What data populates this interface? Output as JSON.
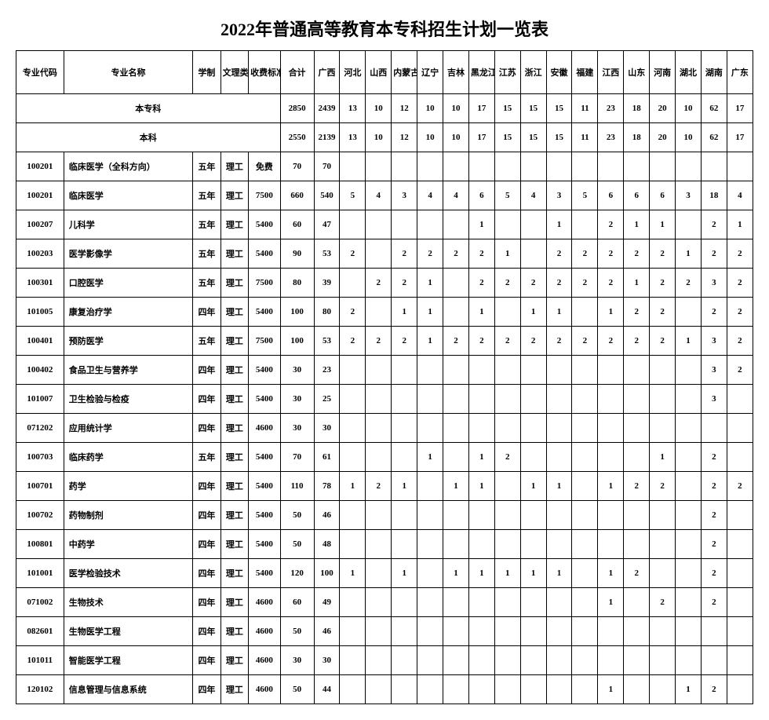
{
  "title": "2022年普通高等教育本专科招生计划一览表",
  "headers": {
    "code": "专业代码",
    "name": "专业名称",
    "xz": "学制",
    "wl": "文理类别",
    "fee": "收费标准/学年",
    "sum": "合计",
    "provinces": [
      "广西",
      "河北",
      "山西",
      "内蒙古",
      "辽宁",
      "吉林",
      "黑龙江",
      "江苏",
      "浙江",
      "安徽",
      "福建",
      "江西",
      "山东",
      "河南",
      "湖北",
      "湖南",
      "广东"
    ]
  },
  "sections": [
    {
      "label": "本专科",
      "totals": [
        "2850",
        "2439",
        "13",
        "10",
        "12",
        "10",
        "10",
        "17",
        "15",
        "15",
        "15",
        "11",
        "23",
        "18",
        "20",
        "10",
        "62",
        "17"
      ]
    },
    {
      "label": "本科",
      "totals": [
        "2550",
        "2139",
        "13",
        "10",
        "12",
        "10",
        "10",
        "17",
        "15",
        "15",
        "15",
        "11",
        "23",
        "18",
        "20",
        "10",
        "62",
        "17"
      ]
    }
  ],
  "rows": [
    {
      "code": "100201",
      "name": "临床医学（全科方向）",
      "xz": "五年",
      "wl": "理工",
      "fee": "免费",
      "sum": "70",
      "v": [
        "70",
        "",
        "",
        "",
        "",
        "",
        "",
        "",
        "",
        "",
        "",
        "",
        "",
        "",
        "",
        "",
        ""
      ]
    },
    {
      "code": "100201",
      "name": "临床医学",
      "xz": "五年",
      "wl": "理工",
      "fee": "7500",
      "sum": "660",
      "v": [
        "540",
        "5",
        "4",
        "3",
        "4",
        "4",
        "6",
        "5",
        "4",
        "3",
        "5",
        "6",
        "6",
        "6",
        "3",
        "18",
        "4"
      ]
    },
    {
      "code": "100207",
      "name": "儿科学",
      "xz": "五年",
      "wl": "理工",
      "fee": "5400",
      "sum": "60",
      "v": [
        "47",
        "",
        "",
        "",
        "",
        "",
        "1",
        "",
        "",
        "1",
        "",
        "2",
        "1",
        "1",
        "",
        "2",
        "1"
      ]
    },
    {
      "code": "100203",
      "name": "医学影像学",
      "xz": "五年",
      "wl": "理工",
      "fee": "5400",
      "sum": "90",
      "v": [
        "53",
        "2",
        "",
        "2",
        "2",
        "2",
        "2",
        "1",
        "",
        "2",
        "2",
        "2",
        "2",
        "2",
        "1",
        "2",
        "2"
      ]
    },
    {
      "code": "100301",
      "name": "口腔医学",
      "xz": "五年",
      "wl": "理工",
      "fee": "7500",
      "sum": "80",
      "v": [
        "39",
        "",
        "2",
        "2",
        "1",
        "",
        "2",
        "2",
        "2",
        "2",
        "2",
        "2",
        "1",
        "2",
        "2",
        "3",
        "2"
      ]
    },
    {
      "code": "101005",
      "name": "康复治疗学",
      "xz": "四年",
      "wl": "理工",
      "fee": "5400",
      "sum": "100",
      "v": [
        "80",
        "2",
        "",
        "1",
        "1",
        "",
        "1",
        "",
        "1",
        "1",
        "",
        "1",
        "2",
        "2",
        "",
        "2",
        "2"
      ]
    },
    {
      "code": "100401",
      "name": "预防医学",
      "xz": "五年",
      "wl": "理工",
      "fee": "7500",
      "sum": "100",
      "v": [
        "53",
        "2",
        "2",
        "2",
        "1",
        "2",
        "2",
        "2",
        "2",
        "2",
        "2",
        "2",
        "2",
        "2",
        "1",
        "3",
        "2"
      ]
    },
    {
      "code": "100402",
      "name": "食品卫生与营养学",
      "xz": "四年",
      "wl": "理工",
      "fee": "5400",
      "sum": "30",
      "v": [
        "23",
        "",
        "",
        "",
        "",
        "",
        "",
        "",
        "",
        "",
        "",
        "",
        "",
        "",
        "",
        "3",
        "2"
      ]
    },
    {
      "code": "101007",
      "name": "卫生检验与检疫",
      "xz": "四年",
      "wl": "理工",
      "fee": "5400",
      "sum": "30",
      "v": [
        "25",
        "",
        "",
        "",
        "",
        "",
        "",
        "",
        "",
        "",
        "",
        "",
        "",
        "",
        "",
        "3",
        ""
      ]
    },
    {
      "code": "071202",
      "name": "应用统计学",
      "xz": "四年",
      "wl": "理工",
      "fee": "4600",
      "sum": "30",
      "v": [
        "30",
        "",
        "",
        "",
        "",
        "",
        "",
        "",
        "",
        "",
        "",
        "",
        "",
        "",
        "",
        "",
        ""
      ]
    },
    {
      "code": "100703",
      "name": "临床药学",
      "xz": "五年",
      "wl": "理工",
      "fee": "5400",
      "sum": "70",
      "v": [
        "61",
        "",
        "",
        "",
        "1",
        "",
        "1",
        "2",
        "",
        "",
        "",
        "",
        "",
        "1",
        "",
        "2",
        ""
      ]
    },
    {
      "code": "100701",
      "name": "药学",
      "xz": "四年",
      "wl": "理工",
      "fee": "5400",
      "sum": "110",
      "v": [
        "78",
        "1",
        "2",
        "1",
        "",
        "1",
        "1",
        "",
        "1",
        "1",
        "",
        "1",
        "2",
        "2",
        "",
        "2",
        "2"
      ]
    },
    {
      "code": "100702",
      "name": "药物制剂",
      "xz": "四年",
      "wl": "理工",
      "fee": "5400",
      "sum": "50",
      "v": [
        "46",
        "",
        "",
        "",
        "",
        "",
        "",
        "",
        "",
        "",
        "",
        "",
        "",
        "",
        "",
        "2",
        ""
      ]
    },
    {
      "code": "100801",
      "name": "中药学",
      "xz": "四年",
      "wl": "理工",
      "fee": "5400",
      "sum": "50",
      "v": [
        "48",
        "",
        "",
        "",
        "",
        "",
        "",
        "",
        "",
        "",
        "",
        "",
        "",
        "",
        "",
        "2",
        ""
      ]
    },
    {
      "code": "101001",
      "name": "医学检验技术",
      "xz": "四年",
      "wl": "理工",
      "fee": "5400",
      "sum": "120",
      "v": [
        "100",
        "1",
        "",
        "1",
        "",
        "1",
        "1",
        "1",
        "1",
        "1",
        "",
        "1",
        "2",
        "",
        "",
        "2",
        ""
      ]
    },
    {
      "code": "071002",
      "name": "生物技术",
      "xz": "四年",
      "wl": "理工",
      "fee": "4600",
      "sum": "60",
      "v": [
        "49",
        "",
        "",
        "",
        "",
        "",
        "",
        "",
        "",
        "",
        "",
        "1",
        "",
        "2",
        "",
        "2",
        ""
      ]
    },
    {
      "code": "082601",
      "name": "生物医学工程",
      "xz": "四年",
      "wl": "理工",
      "fee": "4600",
      "sum": "50",
      "v": [
        "46",
        "",
        "",
        "",
        "",
        "",
        "",
        "",
        "",
        "",
        "",
        "",
        "",
        "",
        "",
        "",
        ""
      ]
    },
    {
      "code": "101011",
      "name": "智能医学工程",
      "xz": "四年",
      "wl": "理工",
      "fee": "4600",
      "sum": "30",
      "v": [
        "30",
        "",
        "",
        "",
        "",
        "",
        "",
        "",
        "",
        "",
        "",
        "",
        "",
        "",
        "",
        "",
        ""
      ]
    },
    {
      "code": "120102",
      "name": "信息管理与信息系统",
      "xz": "四年",
      "wl": "理工",
      "fee": "4600",
      "sum": "50",
      "v": [
        "44",
        "",
        "",
        "",
        "",
        "",
        "",
        "",
        "",
        "",
        "",
        "1",
        "",
        "",
        "1",
        "2",
        ""
      ]
    }
  ]
}
